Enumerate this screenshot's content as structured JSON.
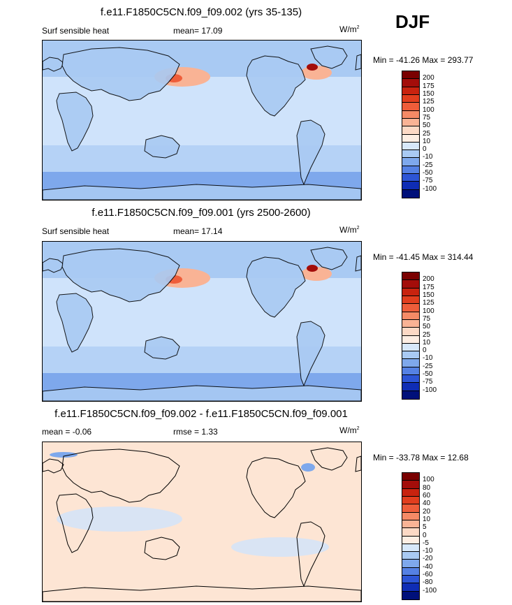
{
  "season": "DJF",
  "panels": [
    {
      "title": "f.e11.F1850C5CN.f09_f09.002 (yrs 35-135)",
      "left_label": "Surf sensible heat",
      "center_label": "mean=  17.09",
      "units": "W/m",
      "units_sup": "2",
      "range_text": "Min = -41.26 Max = 293.77",
      "colorbar_ticks": [
        "200",
        "175",
        "150",
        "125",
        "100",
        "75",
        "50",
        "25",
        "10",
        "0",
        "-10",
        "-25",
        "-50",
        "-75",
        "-100"
      ]
    },
    {
      "title": "f.e11.F1850C5CN.f09_f09.001 (yrs 2500-2600)",
      "left_label": "Surf sensible heat",
      "center_label": "mean=  17.14",
      "units": "W/m",
      "units_sup": "2",
      "range_text": "Min = -41.45 Max = 314.44",
      "colorbar_ticks": [
        "200",
        "175",
        "150",
        "125",
        "100",
        "75",
        "50",
        "25",
        "10",
        "0",
        "-10",
        "-25",
        "-50",
        "-75",
        "-100"
      ]
    },
    {
      "title": "f.e11.F1850C5CN.f09_f09.002 - f.e11.F1850C5CN.f09_f09.001",
      "left_label": "mean =  -0.06",
      "center_label": "rmse =   1.33",
      "units": "W/m",
      "units_sup": "2",
      "range_text": "Min = -33.78 Max =  12.68",
      "colorbar_ticks": [
        "100",
        "80",
        "60",
        "40",
        "20",
        "10",
        "5",
        "0",
        "-5",
        "-10",
        "-20",
        "-40",
        "-60",
        "-80",
        "-100"
      ]
    }
  ],
  "colorbar_colors": [
    "#7a0000",
    "#a30d0a",
    "#c8230f",
    "#e13e1e",
    "#ee5d3a",
    "#f58a66",
    "#f9b395",
    "#fcd9c5",
    "#fdeee3",
    "#d7e8fa",
    "#a9caf3",
    "#7ea8ec",
    "#5581e4",
    "#2d55d6",
    "#0f2db5",
    "#00107a"
  ],
  "palette": {
    "ocean_base": "#cfe3fb",
    "ocean_warm": "#fde5d4",
    "cool_light": "#a9caf3",
    "cool_mid": "#7ea8ec",
    "cool_dark": "#3f6ee0",
    "warm_light": "#f9b395",
    "warm_mid": "#ee5d3a",
    "warm_dark": "#a30d0a",
    "coast": "#000000"
  }
}
